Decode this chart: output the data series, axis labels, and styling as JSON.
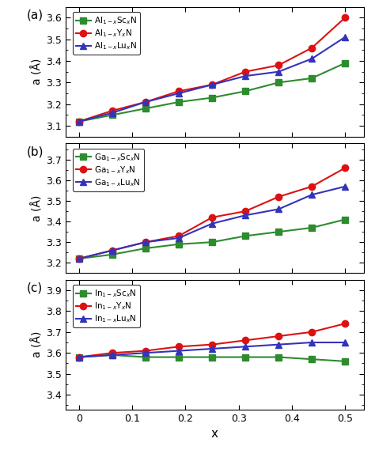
{
  "x": [
    0,
    0.0625,
    0.125,
    0.1875,
    0.25,
    0.3125,
    0.375,
    0.4375,
    0.5
  ],
  "panel_a": {
    "title": "(a)",
    "ylabel": "a (Å)",
    "ylim": [
      3.05,
      3.65
    ],
    "yticks": [
      3.1,
      3.2,
      3.3,
      3.4,
      3.5,
      3.6
    ],
    "Sc": [
      3.12,
      3.15,
      3.18,
      3.21,
      3.23,
      3.26,
      3.3,
      3.32,
      3.39
    ],
    "Y": [
      3.12,
      3.17,
      3.21,
      3.26,
      3.29,
      3.35,
      3.38,
      3.46,
      3.6
    ],
    "Lu": [
      3.12,
      3.16,
      3.21,
      3.25,
      3.29,
      3.33,
      3.35,
      3.41,
      3.51
    ],
    "legend": [
      "Al$_{1-x}$Sc$_x$N",
      "Al$_{1-x}$Y$_x$N",
      "Al$_{1-x}$Lu$_x$N"
    ]
  },
  "panel_b": {
    "title": "(b)",
    "ylabel": "a (Å)",
    "ylim": [
      3.15,
      3.78
    ],
    "yticks": [
      3.2,
      3.3,
      3.4,
      3.5,
      3.6,
      3.7
    ],
    "Sc": [
      3.22,
      3.24,
      3.27,
      3.29,
      3.3,
      3.33,
      3.35,
      3.37,
      3.41
    ],
    "Y": [
      3.22,
      3.26,
      3.3,
      3.33,
      3.42,
      3.45,
      3.52,
      3.57,
      3.66
    ],
    "Lu": [
      3.22,
      3.26,
      3.3,
      3.32,
      3.39,
      3.43,
      3.46,
      3.53,
      3.57
    ],
    "legend": [
      "Ga$_{1-x}$Sc$_x$N",
      "Ga$_{1-x}$Y$_x$N",
      "Ga$_{1-x}$Lu$_x$N"
    ]
  },
  "panel_c": {
    "title": "(c)",
    "ylabel": "a (Å)",
    "ylim": [
      3.33,
      3.95
    ],
    "yticks": [
      3.4,
      3.5,
      3.6,
      3.7,
      3.8,
      3.9
    ],
    "Sc": [
      3.58,
      3.59,
      3.58,
      3.58,
      3.58,
      3.58,
      3.58,
      3.57,
      3.56
    ],
    "Y": [
      3.58,
      3.6,
      3.61,
      3.63,
      3.64,
      3.66,
      3.68,
      3.7,
      3.74
    ],
    "Lu": [
      3.58,
      3.59,
      3.6,
      3.61,
      3.62,
      3.63,
      3.64,
      3.65,
      3.65
    ],
    "legend": [
      "In$_{1-x}$Sc$_x$N",
      "In$_{1-x}$Y$_x$N",
      "In$_{1-x}$Lu$_x$N"
    ]
  },
  "colors": {
    "Sc": "#2e8b2e",
    "Y": "#dd1111",
    "Lu": "#3333bb"
  },
  "markers": {
    "Sc": "s",
    "Y": "o",
    "Lu": "^"
  },
  "markersize": 6,
  "linewidth": 1.5,
  "xlabel": "x",
  "xticks": [
    0,
    0.1,
    0.2,
    0.3,
    0.4,
    0.5
  ],
  "xlim": [
    -0.025,
    0.535
  ]
}
